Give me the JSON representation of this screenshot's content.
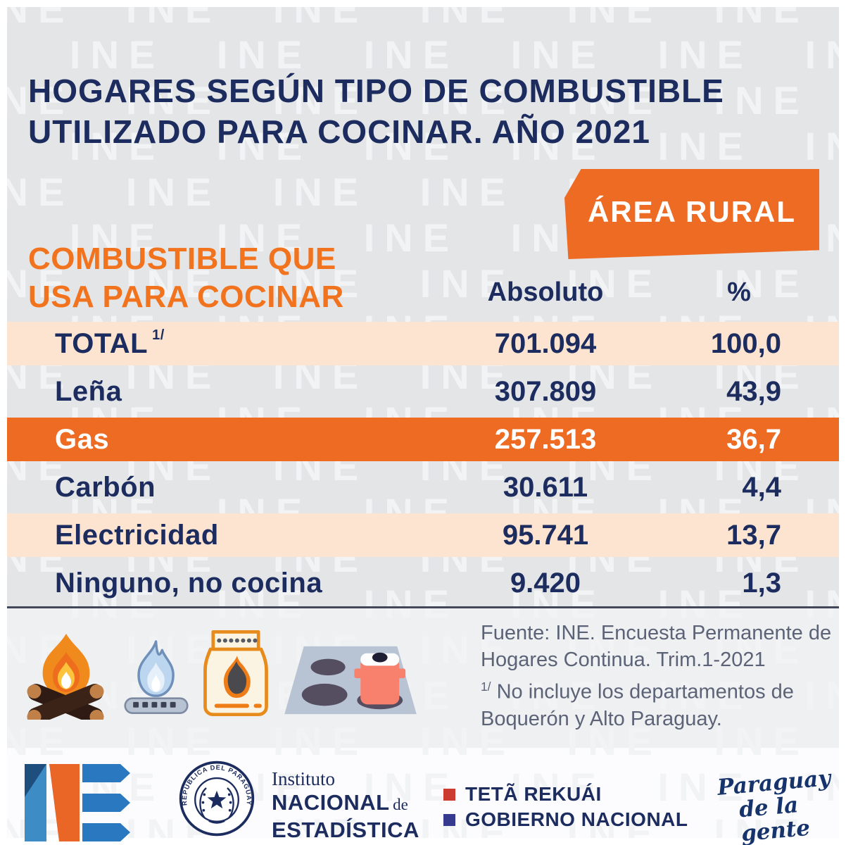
{
  "colors": {
    "accent_orange": "#ee6b24",
    "heading_orange": "#f2731e",
    "navy": "#1c2c5e",
    "peach_row": "#fce4d1",
    "background_gray": "#e4e5e7",
    "source_gray": "#5c6377",
    "gov_red": "#cc3b30",
    "gov_blue": "#373b8f"
  },
  "watermark": {
    "text": "INE"
  },
  "title": {
    "line1": "HOGARES SEGÚN TIPO DE COMBUSTIBLE",
    "line2": "UTILIZADO PARA COCINAR. AÑO 2021"
  },
  "badge": {
    "label": "ÁREA RURAL"
  },
  "table": {
    "heading": {
      "line1": "COMBUSTIBLE QUE",
      "line2": "USA PARA COCINAR"
    },
    "columns": {
      "absolute": "Absoluto",
      "percent": "%"
    },
    "rows": [
      {
        "label": "TOTAL",
        "sup": "1/",
        "absolute": "701.094",
        "percent": "100,0"
      },
      {
        "label": "Leña",
        "sup": "",
        "absolute": "307.809",
        "percent": "43,9"
      },
      {
        "label": "Gas",
        "sup": "",
        "absolute": "257.513",
        "percent": "36,7"
      },
      {
        "label": "Carbón",
        "sup": "",
        "absolute": "30.611",
        "percent": "4,4"
      },
      {
        "label": "Electricidad",
        "sup": "",
        "absolute": "95.741",
        "percent": "13,7"
      },
      {
        "label": "Ninguno, no cocina",
        "sup": "",
        "absolute": "9.420",
        "percent": "1,3"
      }
    ]
  },
  "source": {
    "line1": "Fuente: INE. Encuesta Permanente de Hogares Continua. Trim.1-2021",
    "note_sup": "1/",
    "note": "No incluye los departamentos de Boquerón y Alto Paraguay."
  },
  "footer": {
    "seal_text": "REPUBLICA DEL PARAGUAY",
    "institute": {
      "line1": "Instituto",
      "line2_strong": "NACIONAL",
      "line2_small": "de",
      "line3": "ESTADÍSTICA"
    },
    "gov": {
      "line1": "TETÃ REKUÁI",
      "line2": "GOBIERNO NACIONAL"
    },
    "slogan": {
      "line1": "Paraguay",
      "line2": "de la gente"
    }
  },
  "chart_data": {
    "type": "table",
    "title": "HOGARES SEGÚN TIPO DE COMBUSTIBLE UTILIZADO PARA COCINAR. AÑO 2021",
    "area": "ÁREA RURAL",
    "columns": [
      "COMBUSTIBLE QUE USA PARA COCINAR",
      "Absoluto",
      "%"
    ],
    "categories": [
      "TOTAL",
      "Leña",
      "Gas",
      "Carbón",
      "Electricidad",
      "Ninguno, no cocina"
    ],
    "series": [
      {
        "name": "Absoluto",
        "values": [
          701094,
          307809,
          257513,
          30611,
          95741,
          9420
        ]
      },
      {
        "name": "%",
        "values": [
          100.0,
          43.9,
          36.7,
          4.4,
          13.7,
          1.3
        ]
      }
    ],
    "highlighted_row": "Gas",
    "source": "Fuente: INE. Encuesta Permanente de Hogares Continua. Trim.1-2021",
    "footnote": "1/ No incluye los departamentos de Boquerón y Alto Paraguay."
  }
}
